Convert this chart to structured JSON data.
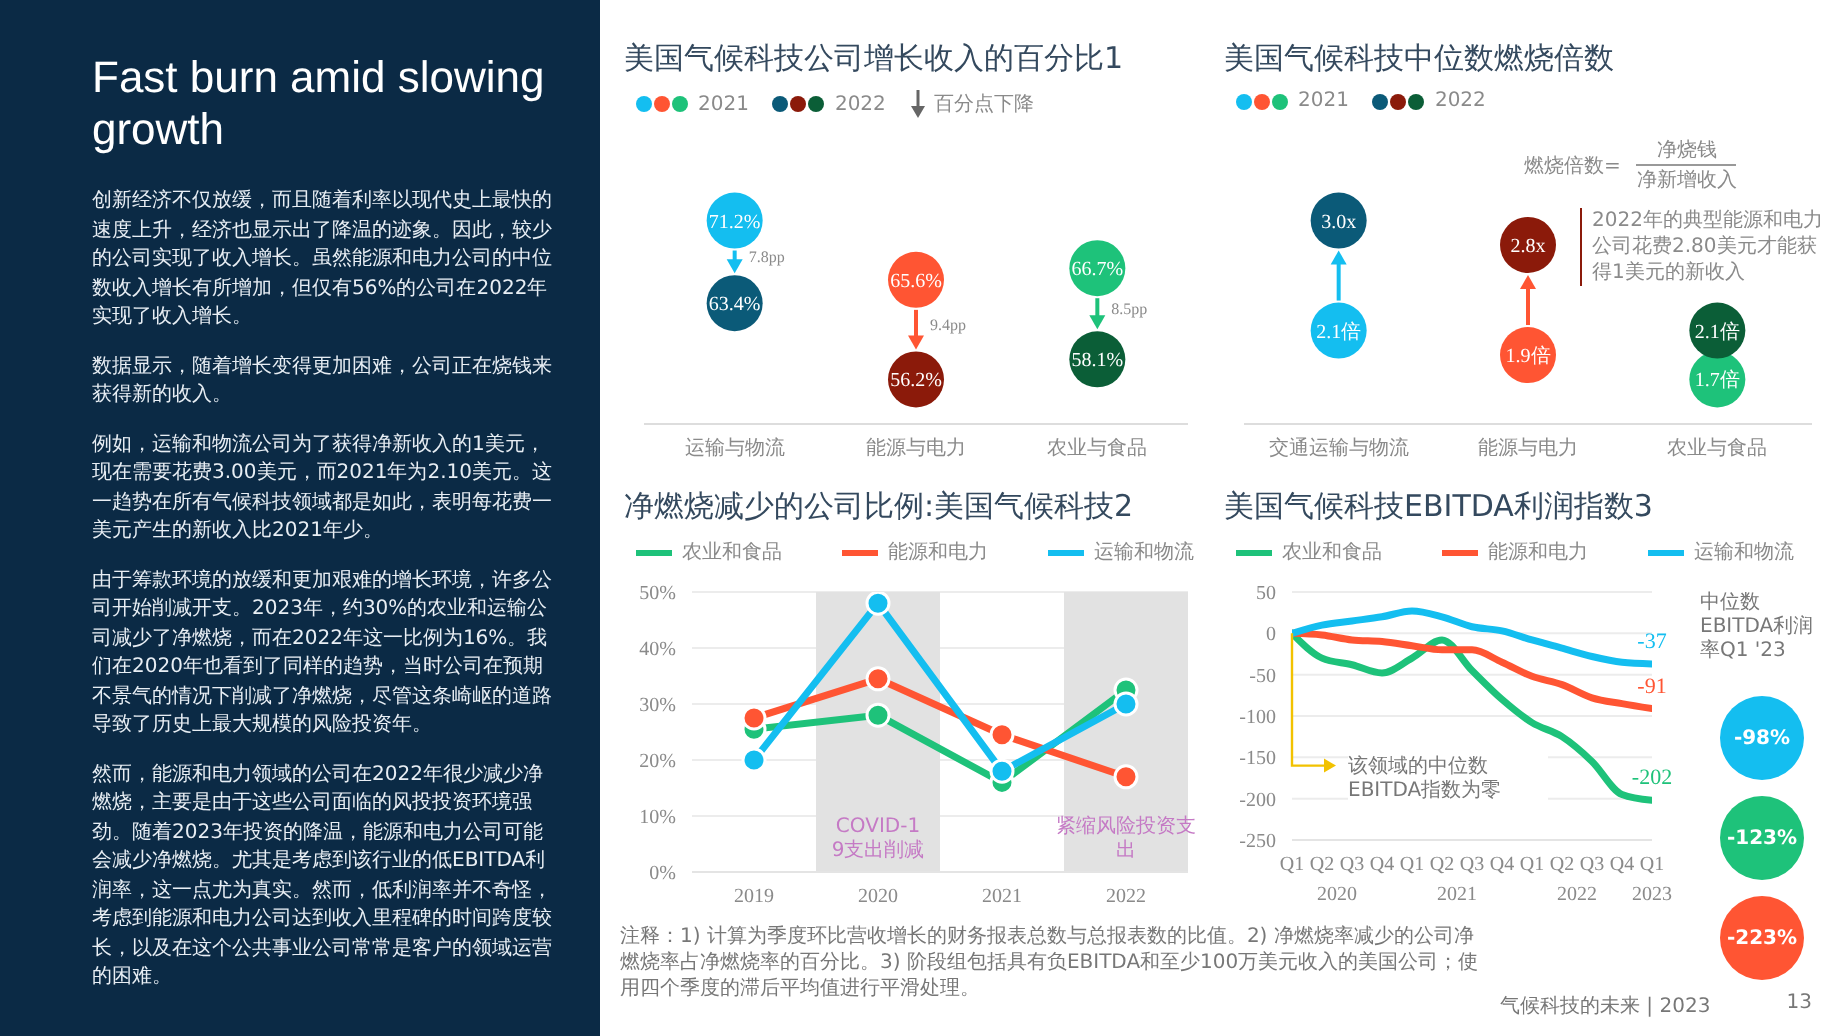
{
  "chart_data": [
    {
      "type": "other",
      "title": "Fast burn amid slowing growth",
      "annotations": [
        "创新经济不仅放缓，而且随着利率以现代史上最快的速度上升，经济也显示出了降温的迹象。因此，较少的公司实现了收入增长。虽然能源和电力公司的中位数收入增长有所增加，但仅有56%的公司在2022年实现了收入增长。",
        "数据显示，随着增长变得更加困难，公司正在烧钱来获得新的收入。",
        "例如，运输和物流公司为了获得净新收入的1美元，现在需要花费3.00美元，而2021年为2.10美元。这一趋势在所有气候科技领域都是如此，表明每花费一美元产生的新收入比2021年少。",
        "由于筹款环境的放缓和更加艰难的增长环境，许多公司开始削减开支。2023年，约30%的农业和运输公司减少了净燃烧，而在2022年这一比例为16%。我们在2020年也看到了同样的趋势，当时公司在预期不景气的情况下削减了净燃烧，尽管这条崎岖的道路导致了历史上最大规模的风险投资年。",
        "然而，能源和电力领域的公司在2022年很少减少净燃烧，主要是由于这些公司面临的风投投资环境强劲。随着2023年投资的降温，能源和电力公司可能会减少净燃烧。尤其是考虑到该行业的低EBITDA利润率，这一点尤为真实。然而，低利润率并不奇怪，考虑到能源和电力公司达到收入里程碑的时间跨度较长，以及在这个公共事业公司常常是客户的领域运营的困难。"
      ]
    },
    {
      "type": "scatter",
      "title": "美国气候科技公司增长收入的百分比1",
      "categories": [
        "运输与物流",
        "能源与电力",
        "农业与食品"
      ],
      "tick_labels": "x",
      "marker": "circle",
      "legend": "top left",
      "series": [
        {
          "name": "2021",
          "values": [
            71.2,
            65.6,
            66.7
          ],
          "colors": [
            "#14bef0",
            "#ff5533",
            "#1ec27a"
          ],
          "value_labels": [
            "71.2%",
            "65.6%",
            "66.7%"
          ]
        },
        {
          "name": "2022",
          "values": [
            63.4,
            56.2,
            58.1
          ],
          "colors": [
            "#0b5a78",
            "#8b1a0a",
            "#0b5e37"
          ],
          "value_labels": [
            "63.4%",
            "56.2%",
            "58.1%"
          ]
        }
      ],
      "annotations": [
        "百分点下降",
        "7.8pp",
        "9.4pp",
        "8.5pp"
      ]
    },
    {
      "type": "scatter",
      "title": "美国气候科技中位数燃烧倍数",
      "categories": [
        "交通运输与物流",
        "能源与电力",
        "农业与食品"
      ],
      "tick_labels": "x",
      "marker": "circle",
      "legend": "top left",
      "series": [
        {
          "name": "2021",
          "values": [
            2.1,
            1.9,
            1.7
          ],
          "colors": [
            "#14bef0",
            "#ff5533",
            "#1ec27a"
          ],
          "value_labels": [
            "2.1倍",
            "1.9倍",
            "1.7倍"
          ]
        },
        {
          "name": "2022",
          "values": [
            3.0,
            2.8,
            2.1
          ],
          "colors": [
            "#0b5a78",
            "#8b1a0a",
            "#0b5e37"
          ],
          "value_labels": [
            "3.0x",
            "2.8x",
            "2.1倍"
          ]
        }
      ],
      "annotations": [
        "燃烧倍数=",
        "净烧钱",
        "净新增收入",
        "2022年的典型能源和电力公司花费2.80美元才能获得1美元的新收入"
      ]
    },
    {
      "type": "line",
      "title": "净燃烧减少的公司比例:美国气候科技2",
      "categories": [
        "2019",
        "2020",
        "2021",
        "2022"
      ],
      "ylim": [
        0,
        50
      ],
      "yticks": [
        {
          "value": 0,
          "label": "0%"
        },
        {
          "value": 10,
          "label": "10%"
        },
        {
          "value": 20,
          "label": "20%"
        },
        {
          "value": 30,
          "label": "30%"
        },
        {
          "value": 40,
          "label": "40%"
        },
        {
          "value": 50,
          "label": "50%"
        }
      ],
      "grid": "y",
      "legend": "top",
      "marker": "circle",
      "line_style": "solid",
      "series": [
        {
          "name": "农业和食品",
          "color": "#1ec27a",
          "values": [
            25.5,
            28,
            16,
            32.5
          ]
        },
        {
          "name": "能源和电力",
          "color": "#ff5533",
          "values": [
            27.5,
            34.5,
            24.5,
            17
          ]
        },
        {
          "name": "运输和物流",
          "color": "#14bef0",
          "values": [
            20,
            48,
            18,
            30
          ]
        }
      ],
      "bands": [
        {
          "axis": "x",
          "from": "2020",
          "to": "2020",
          "label": "COVID-19支出削减",
          "color": "#e2e2e2"
        },
        {
          "axis": "x",
          "from": "2022",
          "to": "2022",
          "label": "紧缩风险投资支出",
          "color": "#e2e2e2"
        }
      ]
    },
    {
      "type": "line",
      "title": "美国气候科技EBITDA利润指数3",
      "categories": [
        "Q1",
        "Q2",
        "Q3",
        "Q4",
        "Q1",
        "Q2",
        "Q3",
        "Q4",
        "Q1",
        "Q2",
        "Q3",
        "Q4",
        "Q1"
      ],
      "ylim": [
        -250,
        50
      ],
      "yticks": [
        -250,
        -200,
        -150,
        -100,
        -50,
        0,
        50
      ],
      "grid": "y",
      "legend": "top",
      "marker": "none",
      "line_style": "solid",
      "series": [
        {
          "name": "农业和食品",
          "color": "#1ec27a",
          "values": [
            0,
            -30,
            -38,
            -48,
            -30,
            -8,
            -45,
            -80,
            -108,
            -125,
            -155,
            -195,
            -202
          ],
          "value_labels": [
            null,
            null,
            null,
            null,
            null,
            null,
            null,
            null,
            null,
            null,
            null,
            null,
            "-202"
          ]
        },
        {
          "name": "能源和电力",
          "color": "#ff5533",
          "values": [
            0,
            -2,
            -8,
            -10,
            -15,
            -20,
            -20,
            -35,
            -52,
            -62,
            -78,
            -85,
            -91
          ],
          "value_labels": [
            null,
            null,
            null,
            null,
            null,
            null,
            null,
            null,
            null,
            null,
            null,
            null,
            "-91"
          ]
        },
        {
          "name": "运输和物流",
          "color": "#14bef0",
          "values": [
            0,
            10,
            15,
            20,
            27,
            20,
            8,
            3,
            -8,
            -18,
            -28,
            -35,
            -37
          ],
          "value_labels": [
            null,
            null,
            null,
            null,
            null,
            null,
            null,
            null,
            null,
            null,
            null,
            null,
            "-37"
          ]
        }
      ],
      "annotations": [
        "该领域的中位数EBITDA指数为零",
        "中位数EBITDA利润率Q1 '23",
        "-98%",
        "-123%",
        "-223%",
        "2020",
        "2021",
        "2022",
        "2023"
      ]
    },
    {
      "type": "other",
      "annotations": [
        "注释：1) 计算为季度环比营收增长的财务报表总数与总报表数的比值。2) 净燃烧率减少的公司净燃烧率占净燃烧率的百分比。3) 阶段组包括具有负EBITDA和至少100万美元收入的美国公司；使用四个季度的滞后平均值进行平滑处理。",
        "气候科技的未来 | 2023",
        "13"
      ]
    }
  ]
}
